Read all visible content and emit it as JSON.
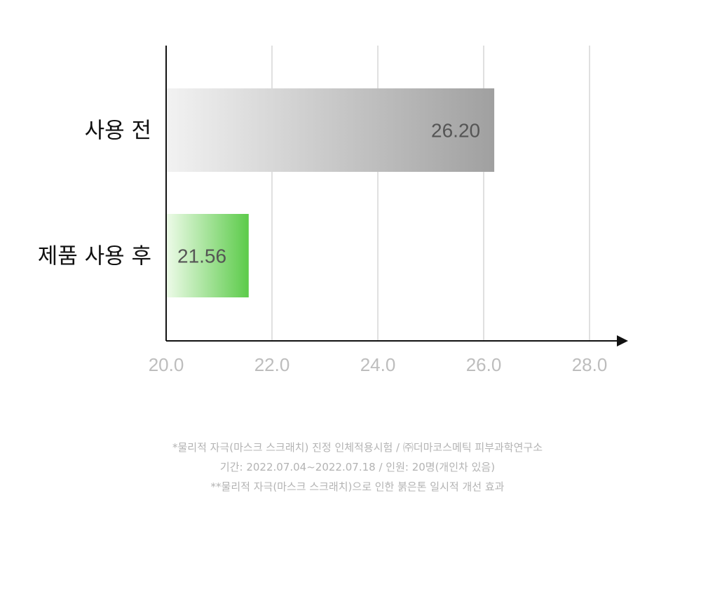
{
  "chart_data": {
    "type": "bar",
    "orientation": "horizontal",
    "categories": [
      "사용 전",
      "제품 사용 후"
    ],
    "values": [
      26.2,
      21.56
    ],
    "value_labels": [
      "26.20",
      "21.56"
    ],
    "xlim": [
      20.0,
      28.0
    ],
    "xticks": [
      "20.0",
      "22.0",
      "24.0",
      "26.0",
      "28.0"
    ],
    "grid": true,
    "colors": {
      "before_gradient": [
        "#f2f2f2",
        "#a0a0a0"
      ],
      "after_gradient": [
        "#eefbe9",
        "#5ccb4a"
      ],
      "tick": "#bdbdbd",
      "value_label": "#555555"
    }
  },
  "notes": [
    "*물리적 자극(마스크 스크래치) 진정 인체적용시험 / ㈜더마코스메틱 피부과학연구소",
    "기간: 2022.07.04~2022.07.18 / 인원: 20명(개인차 있음)",
    "**물리적 자극(마스크 스크래치)으로 인한 붉은톤 일시적 개선 효과"
  ]
}
